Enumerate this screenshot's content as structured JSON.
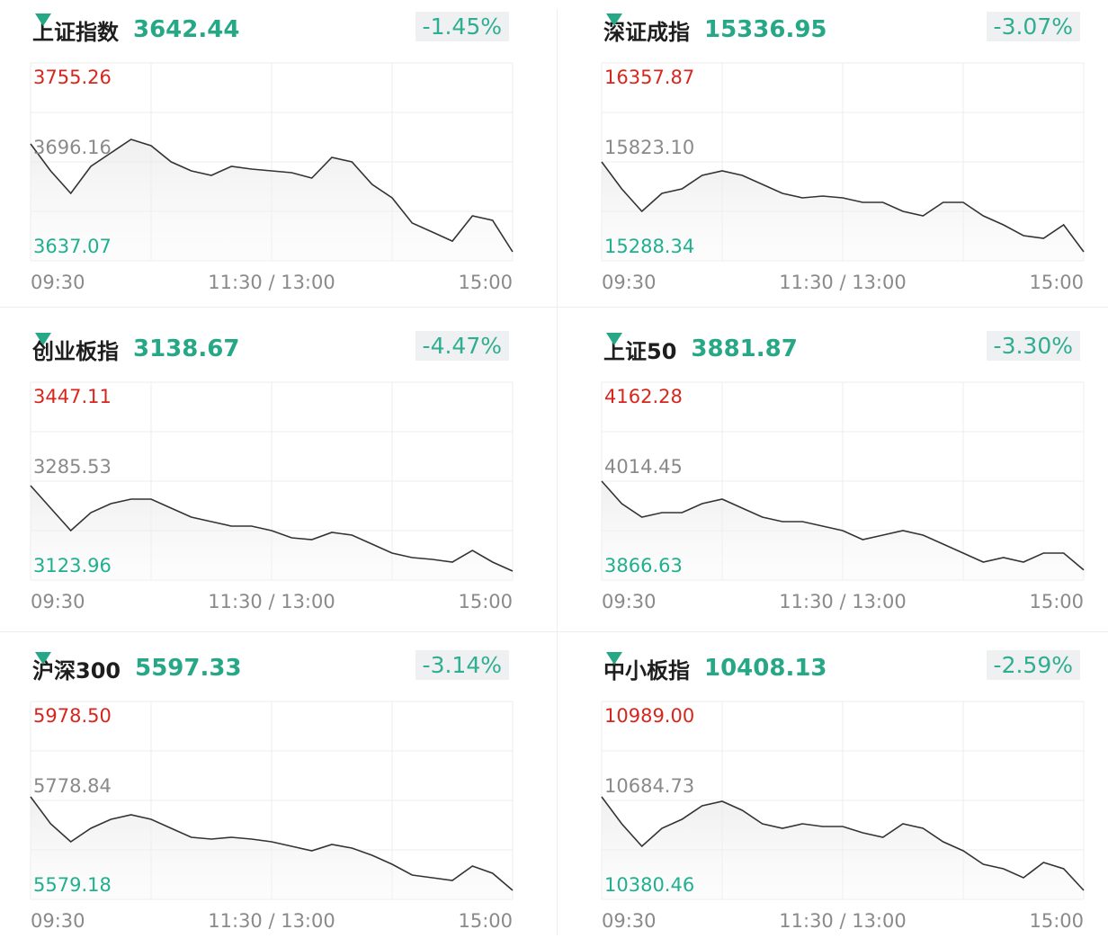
{
  "chart_data": [
    {
      "type": "line",
      "title": "上证指数",
      "price": 3642.44,
      "change": "-1.45%",
      "xlim": [
        0,
        240
      ],
      "xticks": [
        {
          "value": 0,
          "label": "09:30"
        },
        {
          "value": 120,
          "label": "11:30 / 13:00"
        },
        {
          "value": 240,
          "label": "15:00"
        }
      ],
      "ylim": [
        3637.07,
        3755.26
      ],
      "yticks": [
        3637.07,
        3696.16,
        3755.26
      ],
      "ytick_colors": [
        "#1fb08f",
        "#8a8a8a",
        "#d7261e"
      ],
      "grid": true,
      "series": [
        {
          "color": "#333333",
          "x": [
            0,
            10,
            20,
            30,
            40,
            50,
            60,
            70,
            80,
            90,
            100,
            110,
            120,
            130,
            140,
            150,
            160,
            170,
            180,
            190,
            200,
            210,
            220,
            230,
            240
          ],
          "values": [
            3706.91,
            3690.8,
            3677.37,
            3693.48,
            3701.54,
            3709.6,
            3705.84,
            3696.17,
            3690.8,
            3688.11,
            3693.48,
            3691.87,
            3690.8,
            3689.72,
            3686.5,
            3698.85,
            3696.17,
            3682.74,
            3674.68,
            3659.64,
            3654.26,
            3648.86,
            3663.94,
            3661.25,
            3642.44
          ]
        }
      ]
    },
    {
      "type": "line",
      "title": "深证成指",
      "price": 15336.95,
      "change": "-3.07%",
      "xlim": [
        0,
        240
      ],
      "xticks": [
        {
          "value": 0,
          "label": "09:30"
        },
        {
          "value": 120,
          "label": "11:30 / 13:00"
        },
        {
          "value": 240,
          "label": "15:00"
        }
      ],
      "ylim": [
        15288.34,
        16357.87
      ],
      "yticks": [
        15288.34,
        {
          "value": 15823.1,
          "label": "15823.10"
        },
        16357.87
      ],
      "ytick_colors": [
        "#1fb08f",
        "#8a8a8a",
        "#d7261e"
      ],
      "grid": true,
      "series": [
        {
          "color": "#333333",
          "x": [
            0,
            10,
            20,
            30,
            40,
            50,
            60,
            70,
            80,
            90,
            100,
            110,
            120,
            130,
            140,
            150,
            160,
            170,
            180,
            190,
            200,
            210,
            220,
            230,
            240
          ],
          "values": [
            15823.07,
            15677.27,
            15555.77,
            15652.97,
            15677.27,
            15750.17,
            15774.47,
            15750.17,
            15701.57,
            15652.97,
            15628.67,
            15638.37,
            15628.67,
            15604.37,
            15604.37,
            15555.77,
            15531.37,
            15604.37,
            15604.37,
            15531.37,
            15482.77,
            15424.47,
            15409.87,
            15482.77,
            15336.95
          ]
        }
      ]
    },
    {
      "type": "line",
      "title": "创业板指",
      "price": 3138.67,
      "change": "-4.47%",
      "xlim": [
        0,
        240
      ],
      "xticks": [
        {
          "value": 0,
          "label": "09:30"
        },
        {
          "value": 120,
          "label": "11:30 / 13:00"
        },
        {
          "value": 240,
          "label": "15:00"
        }
      ],
      "ylim": [
        3123.96,
        3447.11
      ],
      "yticks": [
        3123.96,
        3285.53,
        3447.11
      ],
      "ytick_colors": [
        "#1fb08f",
        "#8a8a8a",
        "#d7261e"
      ],
      "grid": true,
      "series": [
        {
          "color": "#333333",
          "x": [
            0,
            10,
            20,
            30,
            40,
            50,
            60,
            70,
            80,
            90,
            100,
            110,
            120,
            130,
            140,
            150,
            160,
            170,
            180,
            190,
            200,
            210,
            220,
            230,
            240
          ],
          "values": [
            3278.19,
            3241.47,
            3204.74,
            3234.11,
            3248.81,
            3256.11,
            3256.11,
            3241.47,
            3226.77,
            3219.44,
            3212.09,
            3212.09,
            3204.74,
            3192.99,
            3190.05,
            3201.8,
            3197.4,
            3182.71,
            3168.02,
            3160.67,
            3157.74,
            3153.33,
            3172.43,
            3153.33,
            3138.67
          ]
        }
      ]
    },
    {
      "type": "line",
      "title": "上证50",
      "price": 3881.87,
      "change": "-3.30%",
      "xlim": [
        0,
        240
      ],
      "xticks": [
        {
          "value": 0,
          "label": "09:30"
        },
        {
          "value": 120,
          "label": "11:30 / 13:00"
        },
        {
          "value": 240,
          "label": "15:00"
        }
      ],
      "ylim": [
        3866.63,
        4162.28
      ],
      "yticks": [
        3866.63,
        4014.45,
        4162.28
      ],
      "ytick_colors": [
        "#1fb08f",
        "#8a8a8a",
        "#d7261e"
      ],
      "grid": true,
      "series": [
        {
          "color": "#333333",
          "x": [
            0,
            10,
            20,
            30,
            40,
            50,
            60,
            70,
            80,
            90,
            100,
            110,
            120,
            130,
            140,
            150,
            160,
            170,
            180,
            190,
            200,
            210,
            220,
            230,
            240
          ],
          "values": [
            4014.45,
            3980.85,
            3960.68,
            3967.41,
            3967.41,
            3980.85,
            3987.57,
            3974.13,
            3960.68,
            3953.97,
            3953.97,
            3947.26,
            3940.55,
            3927.11,
            3933.8,
            3940.55,
            3933.8,
            3920.38,
            3906.94,
            3893.5,
            3900.19,
            3893.5,
            3906.94,
            3906.94,
            3881.87
          ]
        }
      ]
    },
    {
      "type": "line",
      "title": "沪深300",
      "price": 5597.33,
      "change": "-3.14%",
      "xlim": [
        0,
        240
      ],
      "xticks": [
        {
          "value": 0,
          "label": "09:30"
        },
        {
          "value": 120,
          "label": "11:30 / 13:00"
        },
        {
          "value": 240,
          "label": "15:00"
        }
      ],
      "ylim": [
        5579.18,
        5978.5
      ],
      "yticks": [
        5579.18,
        5778.84,
        {
          "value": 5978.5,
          "label": "5978.50"
        }
      ],
      "ytick_colors": [
        "#1fb08f",
        "#8a8a8a",
        "#d7261e"
      ],
      "grid": true,
      "series": [
        {
          "color": "#333333",
          "x": [
            0,
            10,
            20,
            30,
            40,
            50,
            60,
            70,
            80,
            90,
            100,
            110,
            120,
            130,
            140,
            150,
            160,
            170,
            180,
            190,
            200,
            210,
            220,
            230,
            240
          ],
          "values": [
            5786.1,
            5731.6,
            5695.3,
            5722.6,
            5740.7,
            5749.8,
            5740.7,
            5722.6,
            5704.4,
            5700.8,
            5704.4,
            5700.8,
            5695.3,
            5686.3,
            5677.2,
            5689.9,
            5682.6,
            5668.1,
            5650.0,
            5628.2,
            5622.7,
            5617.3,
            5646.3,
            5631.8,
            5597.33
          ]
        }
      ]
    },
    {
      "type": "line",
      "title": "中小板指",
      "price": 10408.13,
      "change": "-2.59%",
      "xlim": [
        0,
        240
      ],
      "xticks": [
        {
          "value": 0,
          "label": "09:30"
        },
        {
          "value": 120,
          "label": "11:30 / 13:00"
        },
        {
          "value": 240,
          "label": "15:00"
        }
      ],
      "ylim": [
        10380.46,
        10989
      ],
      "yticks": [
        10380.46,
        10684.73,
        {
          "value": 10989,
          "label": "10989.00"
        }
      ],
      "ytick_colors": [
        "#1fb08f",
        "#8a8a8a",
        "#d7261e"
      ],
      "grid": true,
      "series": [
        {
          "color": "#333333",
          "x": [
            0,
            10,
            20,
            30,
            40,
            50,
            60,
            70,
            80,
            90,
            100,
            110,
            120,
            130,
            140,
            150,
            160,
            170,
            180,
            190,
            200,
            210,
            220,
            230,
            240
          ],
          "values": [
            10695.8,
            10612.8,
            10543.7,
            10599.0,
            10626.6,
            10668.1,
            10682.0,
            10654.3,
            10612.8,
            10599.0,
            10612.8,
            10604.5,
            10604.5,
            10585.1,
            10571.3,
            10612.8,
            10599.0,
            10557.5,
            10529.8,
            10488.3,
            10474.5,
            10446.8,
            10493.9,
            10474.5,
            10408.13
          ]
        }
      ]
    }
  ]
}
